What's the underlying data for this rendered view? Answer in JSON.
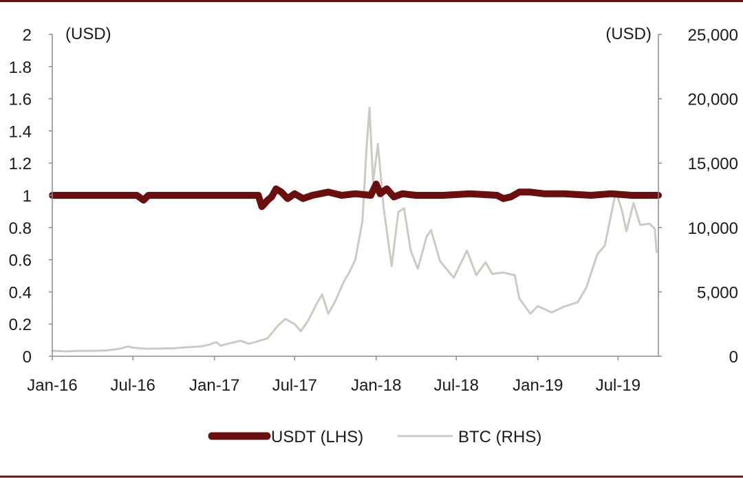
{
  "chart_data": {
    "type": "line",
    "title": "",
    "xlabel": "",
    "left_axis": {
      "unit_label": "(USD)",
      "ylim": [
        0,
        2
      ],
      "ticks": [
        "0",
        "0.2",
        "0.4",
        "0.6",
        "0.8",
        "1",
        "1.2",
        "1.4",
        "1.6",
        "1.8",
        "2"
      ]
    },
    "right_axis": {
      "unit_label": "(USD)",
      "ylim": [
        0,
        25000
      ],
      "ticks": [
        "0",
        "5,000",
        "10,000",
        "15,000",
        "20,000",
        "25,000"
      ]
    },
    "x_ticks": [
      "Jan-16",
      "Jul-16",
      "Jan-17",
      "Jul-17",
      "Jan-18",
      "Jul-18",
      "Jan-19",
      "Jul-19"
    ],
    "xlim": [
      "2016-01-01",
      "2019-09-30"
    ],
    "grid": false,
    "legend_position": "bottom",
    "series": [
      {
        "name": "USDT (LHS)",
        "axis": "left",
        "color": "#6b0e0e",
        "points": [
          [
            "2016-01-01",
            1.0
          ],
          [
            "2016-04-01",
            1.0
          ],
          [
            "2016-06-01",
            1.0
          ],
          [
            "2016-07-10",
            1.0
          ],
          [
            "2016-07-25",
            0.97
          ],
          [
            "2016-08-05",
            1.0
          ],
          [
            "2016-10-01",
            1.0
          ],
          [
            "2017-01-01",
            1.0
          ],
          [
            "2017-03-01",
            1.0
          ],
          [
            "2017-04-10",
            1.0
          ],
          [
            "2017-04-18",
            0.93
          ],
          [
            "2017-04-25",
            0.95
          ],
          [
            "2017-05-01",
            0.97
          ],
          [
            "2017-05-10",
            0.99
          ],
          [
            "2017-05-20",
            1.04
          ],
          [
            "2017-06-01",
            1.02
          ],
          [
            "2017-06-15",
            0.98
          ],
          [
            "2017-07-01",
            1.01
          ],
          [
            "2017-07-20",
            0.98
          ],
          [
            "2017-08-10",
            1.0
          ],
          [
            "2017-09-15",
            1.02
          ],
          [
            "2017-10-15",
            1.0
          ],
          [
            "2017-11-15",
            1.01
          ],
          [
            "2017-12-20",
            1.0
          ],
          [
            "2018-01-01",
            1.07
          ],
          [
            "2018-01-10",
            1.01
          ],
          [
            "2018-01-25",
            1.04
          ],
          [
            "2018-02-10",
            0.99
          ],
          [
            "2018-03-01",
            1.01
          ],
          [
            "2018-04-01",
            1.0
          ],
          [
            "2018-06-01",
            1.0
          ],
          [
            "2018-08-01",
            1.01
          ],
          [
            "2018-10-01",
            1.0
          ],
          [
            "2018-10-15",
            0.98
          ],
          [
            "2018-11-01",
            0.99
          ],
          [
            "2018-11-20",
            1.02
          ],
          [
            "2018-12-15",
            1.02
          ],
          [
            "2019-01-15",
            1.01
          ],
          [
            "2019-03-01",
            1.01
          ],
          [
            "2019-05-01",
            1.0
          ],
          [
            "2019-06-15",
            1.01
          ],
          [
            "2019-08-01",
            1.0
          ],
          [
            "2019-09-30",
            1.0
          ]
        ]
      },
      {
        "name": "BTC (RHS)",
        "axis": "right",
        "color": "#cbcbc3",
        "points": [
          [
            "2016-01-01",
            430
          ],
          [
            "2016-02-01",
            380
          ],
          [
            "2016-03-01",
            420
          ],
          [
            "2016-04-01",
            420
          ],
          [
            "2016-05-01",
            450
          ],
          [
            "2016-06-01",
            580
          ],
          [
            "2016-06-20",
            760
          ],
          [
            "2016-07-01",
            670
          ],
          [
            "2016-08-01",
            580
          ],
          [
            "2016-09-01",
            600
          ],
          [
            "2016-10-01",
            620
          ],
          [
            "2016-11-01",
            700
          ],
          [
            "2016-12-01",
            760
          ],
          [
            "2016-12-20",
            900
          ],
          [
            "2017-01-05",
            1100
          ],
          [
            "2017-01-15",
            820
          ],
          [
            "2017-02-01",
            980
          ],
          [
            "2017-03-01",
            1200
          ],
          [
            "2017-03-20",
            970
          ],
          [
            "2017-04-01",
            1080
          ],
          [
            "2017-05-01",
            1400
          ],
          [
            "2017-05-25",
            2400
          ],
          [
            "2017-06-10",
            2900
          ],
          [
            "2017-07-01",
            2500
          ],
          [
            "2017-07-15",
            1950
          ],
          [
            "2017-08-01",
            2800
          ],
          [
            "2017-08-20",
            4100
          ],
          [
            "2017-09-01",
            4800
          ],
          [
            "2017-09-15",
            3300
          ],
          [
            "2017-10-01",
            4300
          ],
          [
            "2017-10-20",
            5800
          ],
          [
            "2017-11-01",
            6500
          ],
          [
            "2017-11-15",
            7500
          ],
          [
            "2017-12-01",
            10500
          ],
          [
            "2017-12-10",
            16000
          ],
          [
            "2017-12-17",
            19300
          ],
          [
            "2017-12-25",
            13500
          ],
          [
            "2018-01-05",
            16500
          ],
          [
            "2018-01-18",
            11500
          ],
          [
            "2018-02-05",
            7000
          ],
          [
            "2018-02-20",
            11200
          ],
          [
            "2018-03-05",
            11500
          ],
          [
            "2018-03-20",
            8200
          ],
          [
            "2018-04-05",
            6800
          ],
          [
            "2018-04-25",
            9300
          ],
          [
            "2018-05-05",
            9800
          ],
          [
            "2018-05-25",
            7400
          ],
          [
            "2018-06-25",
            6100
          ],
          [
            "2018-07-25",
            8200
          ],
          [
            "2018-08-15",
            6300
          ],
          [
            "2018-09-05",
            7300
          ],
          [
            "2018-09-20",
            6400
          ],
          [
            "2018-10-15",
            6500
          ],
          [
            "2018-11-10",
            6300
          ],
          [
            "2018-11-20",
            4500
          ],
          [
            "2018-12-15",
            3300
          ],
          [
            "2019-01-01",
            3900
          ],
          [
            "2019-02-01",
            3400
          ],
          [
            "2019-03-01",
            3850
          ],
          [
            "2019-04-01",
            4200
          ],
          [
            "2019-04-20",
            5300
          ],
          [
            "2019-05-15",
            7900
          ],
          [
            "2019-06-01",
            8600
          ],
          [
            "2019-06-26",
            12800
          ],
          [
            "2019-07-10",
            11300
          ],
          [
            "2019-07-20",
            9700
          ],
          [
            "2019-08-05",
            11900
          ],
          [
            "2019-08-20",
            10200
          ],
          [
            "2019-09-10",
            10300
          ],
          [
            "2019-09-22",
            9900
          ],
          [
            "2019-09-26",
            8100
          ]
        ]
      }
    ]
  }
}
